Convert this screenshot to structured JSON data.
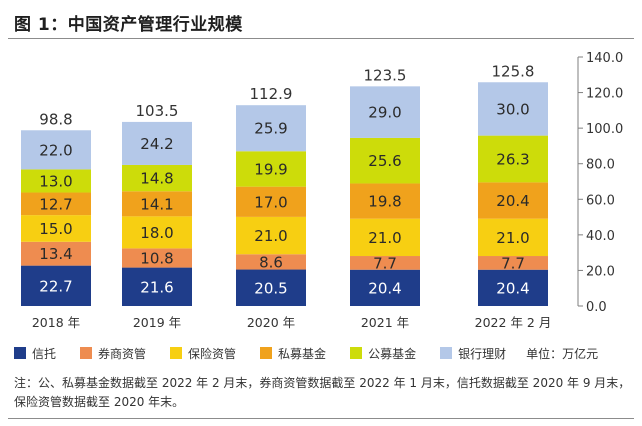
{
  "title": "图 1：中国资产管理行业规模",
  "unit_label": "单位：万亿元",
  "note": "注：公、私募基金数据截至 2022 年 2 月末，券商资管数据截至 2022 年 1 月末，信托数据截至 2020 年 9 月末，保险资管数据截至 2020 年末。",
  "chart_data": {
    "type": "bar",
    "stacked": true,
    "categories": [
      "2018 年",
      "2019 年",
      "2020 年",
      "2021 年",
      "2022 年 2 月"
    ],
    "totals": [
      98.8,
      103.5,
      112.9,
      123.5,
      125.8
    ],
    "series": [
      {
        "name": "信托",
        "color": "#1f3d8a",
        "values": [
          22.7,
          21.6,
          20.5,
          20.4,
          20.4
        ]
      },
      {
        "name": "券商资管",
        "color": "#ee8c50",
        "values": [
          13.4,
          10.8,
          8.6,
          7.7,
          7.7
        ]
      },
      {
        "name": "保险资管",
        "color": "#f7cf12",
        "values": [
          15.0,
          18.0,
          21.0,
          21.0,
          21.0
        ]
      },
      {
        "name": "私募基金",
        "color": "#f0a21c",
        "values": [
          12.7,
          14.1,
          17.0,
          19.8,
          20.4
        ]
      },
      {
        "name": "公募基金",
        "color": "#cddc0a",
        "values": [
          13.0,
          14.8,
          19.9,
          25.6,
          26.3
        ]
      },
      {
        "name": "银行理财",
        "color": "#b4c8e8",
        "values": [
          22.0,
          24.2,
          25.9,
          29.0,
          30.0
        ]
      }
    ],
    "y_axis": {
      "position": "right",
      "min": 0,
      "max": 140,
      "ticks": [
        0,
        20,
        40,
        60,
        80,
        100,
        120,
        140
      ],
      "tick_labels": [
        "0.0",
        "20.0",
        "40.0",
        "60.0",
        "80.0",
        "100.0",
        "120.0",
        "140.0"
      ]
    },
    "legend_position": "bottom",
    "grid": false
  }
}
